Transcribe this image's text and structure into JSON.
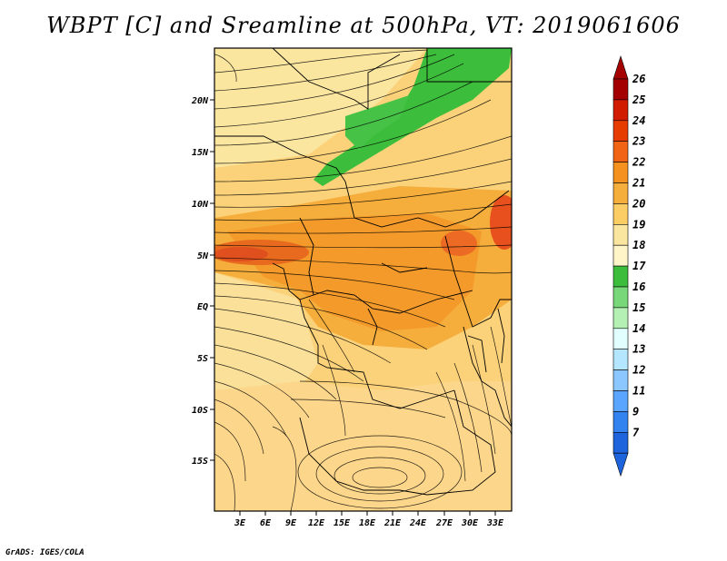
{
  "title": "WBPT [C] and Sreamline at 500hPa, VT: 2019061606",
  "footer": "GrADS: IGES/COLA",
  "map": {
    "lat_labels": [
      "20N",
      "15N",
      "10N",
      "5N",
      "EQ",
      "5S",
      "10S",
      "15S"
    ],
    "lon_labels": [
      "3E",
      "6E",
      "9E",
      "12E",
      "15E",
      "18E",
      "21E",
      "24E",
      "27E",
      "30E",
      "33E"
    ]
  },
  "colorbar": {
    "labels": [
      "26",
      "25",
      "24",
      "23",
      "22",
      "21",
      "20",
      "19",
      "18",
      "17",
      "16",
      "15",
      "14",
      "13",
      "12",
      "11",
      "9",
      "7"
    ],
    "colors": [
      "#a50000",
      "#d21c00",
      "#e63c00",
      "#f06414",
      "#f5911e",
      "#f5ad3c",
      "#fbcd64",
      "#fbe6a0",
      "#fff5c8",
      "#3cbe3c",
      "#78d778",
      "#b4f0b4",
      "#e1ffff",
      "#b4e6ff",
      "#8cc8ff",
      "#5aa5ff",
      "#3282f0",
      "#1e64dc"
    ]
  }
}
